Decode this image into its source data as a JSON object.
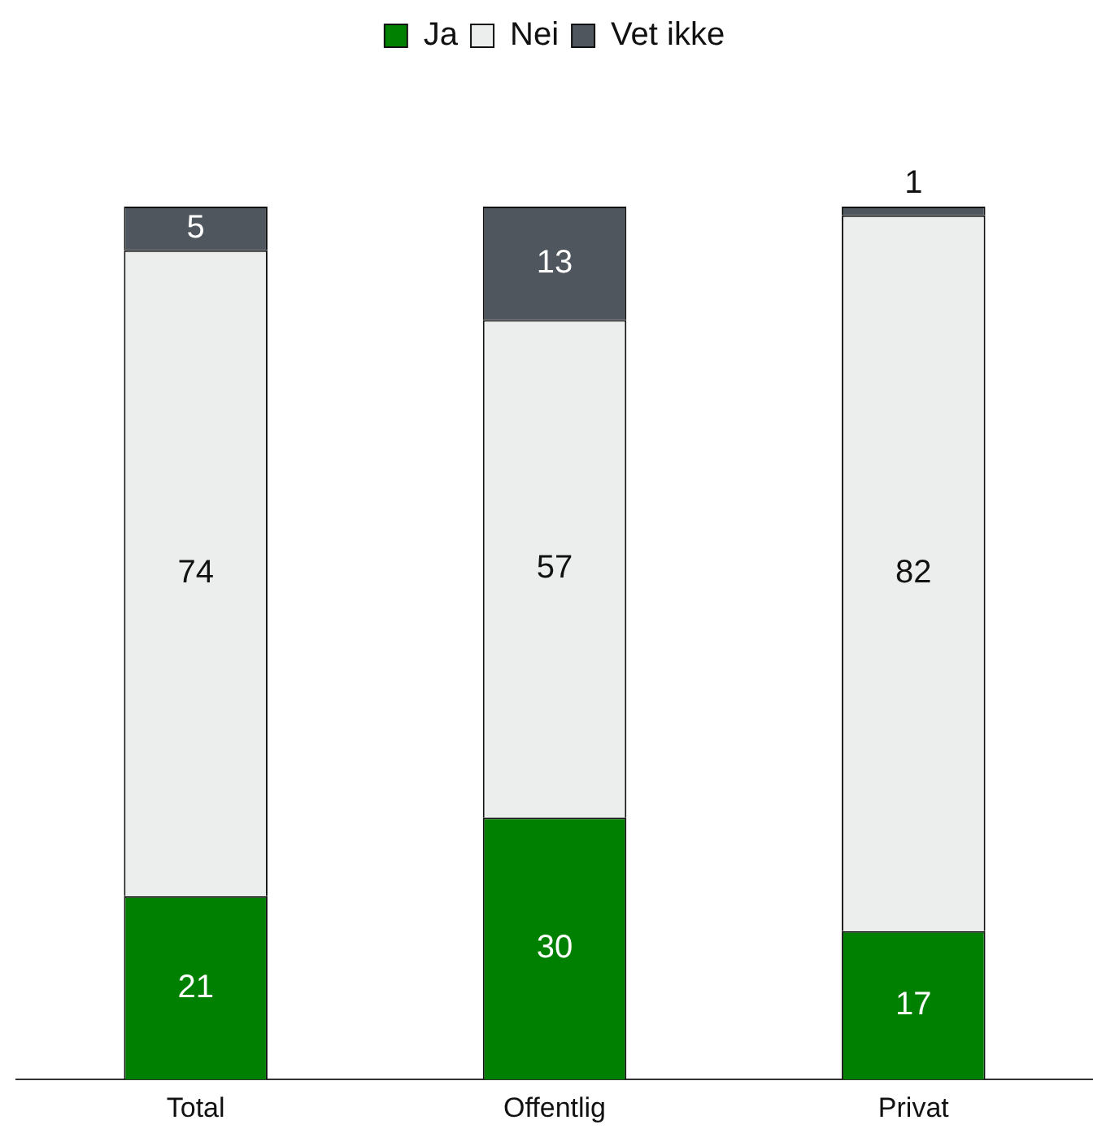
{
  "chart_data": {
    "type": "bar",
    "stacked": true,
    "categories": [
      "Total",
      "Offentlig",
      "Privat"
    ],
    "series": [
      {
        "name": "Ja",
        "color": "#008000",
        "values": [
          21,
          30,
          17
        ]
      },
      {
        "name": "Nei",
        "color": "#eceeed",
        "values": [
          74,
          57,
          82
        ]
      },
      {
        "name": "Vet ikke",
        "color": "#4f565d",
        "values": [
          5,
          13,
          1
        ]
      }
    ],
    "ylim": [
      0,
      100
    ],
    "data_labels": true,
    "legend": "top",
    "grid": false,
    "tick_labels": "x"
  }
}
